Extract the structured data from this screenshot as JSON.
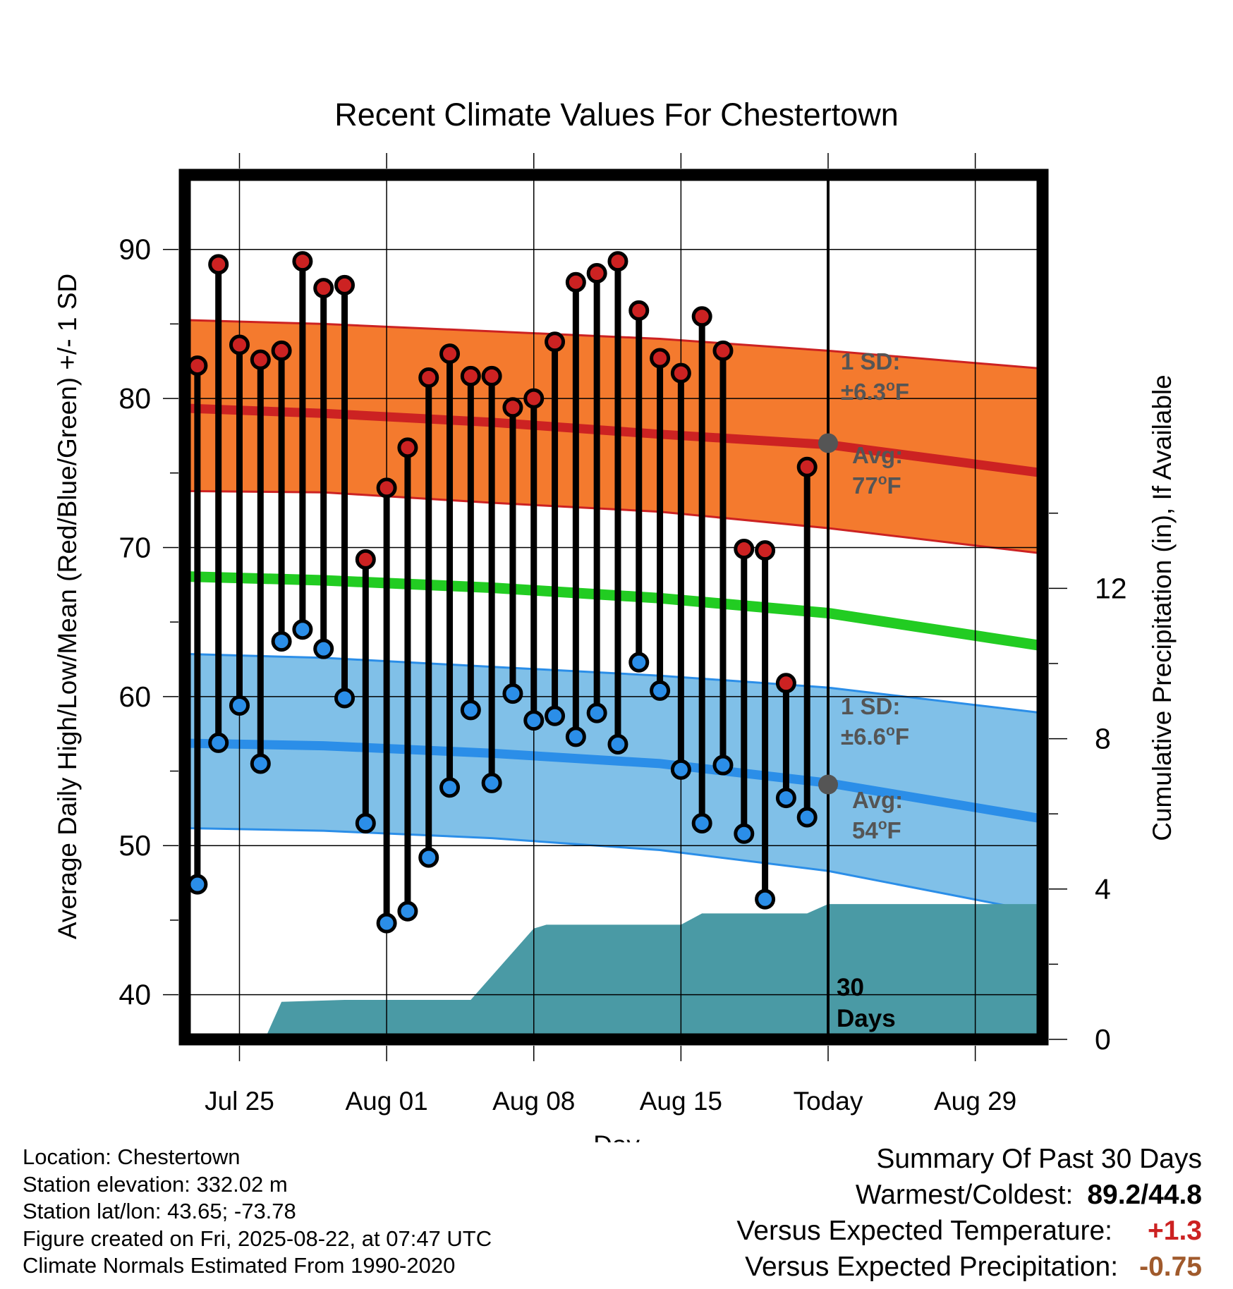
{
  "chart_data": {
    "type": "line",
    "title": "Recent Climate Values For Chestertown",
    "xlabel": "Day",
    "ylabel_left": "Average Daily High/Low/Mean (Red/Blue/Green) +/- 1 SD",
    "ylabel_right": "Cumulative Precipitation (in), If Available",
    "x_tick_labels": [
      "Jul 25",
      "Aug 01",
      "Aug 08",
      "Aug 15",
      "Today",
      "Aug 29"
    ],
    "y_left_ticks": [
      "40",
      "50",
      "60",
      "70",
      "80",
      "90"
    ],
    "y_right_ticks": [
      "0",
      "4",
      "8",
      "12"
    ],
    "ylim_left": [
      37,
      95
    ],
    "ylim_right": [
      0,
      23
    ],
    "xlim_days_from_jul25": [
      -2.6,
      38.2
    ],
    "grid": true,
    "colors": {
      "high": "#cc2222",
      "low": "#2b8ee8",
      "mean": "#22cc22",
      "high_band": "#f47a2e",
      "low_band": "#80c0e8",
      "precip": "#4a9aa5"
    },
    "observed": {
      "days_from_jul25": [
        -2,
        -1,
        0,
        1,
        2,
        3,
        4,
        5,
        6,
        7,
        8,
        9,
        10,
        11,
        12,
        13,
        14,
        15,
        16,
        17,
        18,
        19,
        20,
        21,
        22,
        23,
        24,
        25,
        26,
        27,
        28
      ],
      "high": [
        82.2,
        89.0,
        83.6,
        82.6,
        83.2,
        89.2,
        87.4,
        87.6,
        69.2,
        74.0,
        76.7,
        81.4,
        83.0,
        81.5,
        81.5,
        79.4,
        80.0,
        83.8,
        87.8,
        88.4,
        89.2,
        85.9,
        82.7,
        81.7,
        85.5,
        83.2,
        69.9,
        69.8,
        60.9,
        75.4,
        null
      ],
      "low": [
        47.4,
        56.9,
        59.4,
        55.5,
        63.7,
        64.5,
        63.2,
        59.9,
        51.5,
        44.8,
        45.6,
        49.2,
        53.9,
        59.1,
        54.2,
        60.2,
        58.4,
        58.7,
        57.3,
        58.9,
        56.8,
        62.3,
        60.4,
        55.1,
        51.5,
        55.4,
        50.8,
        46.4,
        53.2,
        51.9,
        null
      ]
    },
    "normals": {
      "days_from_jul25": [
        -3.6,
        4,
        12,
        20,
        28,
        38.2
      ],
      "high_avg": [
        79.4,
        79.0,
        78.4,
        77.6,
        76.9,
        75.0
      ],
      "high_sd_upper": [
        85.3,
        85.0,
        84.5,
        84.0,
        83.2,
        82.0
      ],
      "high_sd_lower": [
        73.8,
        73.7,
        73.0,
        72.4,
        71.3,
        69.6
      ],
      "mean_avg": [
        68.1,
        67.8,
        67.3,
        66.6,
        65.6,
        63.4
      ],
      "low_avg": [
        56.9,
        56.7,
        56.2,
        55.5,
        54.2,
        51.8
      ],
      "low_sd_upper": [
        62.9,
        62.6,
        62.0,
        61.4,
        60.6,
        58.9
      ],
      "low_sd_lower": [
        51.2,
        51.0,
        50.5,
        49.7,
        48.3,
        45.5
      ]
    },
    "precip_cumulative": {
      "days_from_jul25": [
        1.2,
        2.0,
        5.0,
        11.0,
        14.0,
        14.6,
        15.0,
        21.0,
        22.0,
        27.0,
        28.0,
        38.2
      ],
      "values": [
        0,
        1.0,
        1.05,
        1.05,
        2.95,
        3.05,
        3.05,
        3.05,
        3.35,
        3.35,
        3.6,
        3.6
      ]
    },
    "today_marker": {
      "day_from_jul25": 28,
      "label_line1": "30",
      "label_line2": "Days"
    },
    "annotations": {
      "high": {
        "sd_label": "1 SD:",
        "sd_value": "±6.3",
        "sd_unit": "F",
        "avg_label": "Avg:",
        "avg_value": "77",
        "avg_unit": "F",
        "avg_point": 77.0
      },
      "low": {
        "sd_label": "1 SD:",
        "sd_value": "±6.6",
        "sd_unit": "F",
        "avg_label": "Avg:",
        "avg_value": "54",
        "avg_unit": "F",
        "avg_point": 54.1
      }
    }
  },
  "footer": {
    "location": "Location: Chestertown",
    "elevation": "Station elevation: 332.02 m",
    "latlon": "Station lat/lon: 43.65; -73.78",
    "created": "Figure created on Fri, 2025-08-22, at 07:47 UTC",
    "normals": "Climate Normals Estimated From 1990-2020"
  },
  "summary": {
    "title": "Summary Of Past 30 Days",
    "warmest_coldest_label": "Warmest/Coldest:",
    "warmest_coldest_value": "89.2/44.8",
    "temp_label": "Versus Expected Temperature:",
    "temp_value": "+1.3",
    "temp_color": "#cc2222",
    "precip_label": "Versus Expected Precipitation:",
    "precip_value": "-0.75",
    "precip_color": "#a05a2c"
  }
}
